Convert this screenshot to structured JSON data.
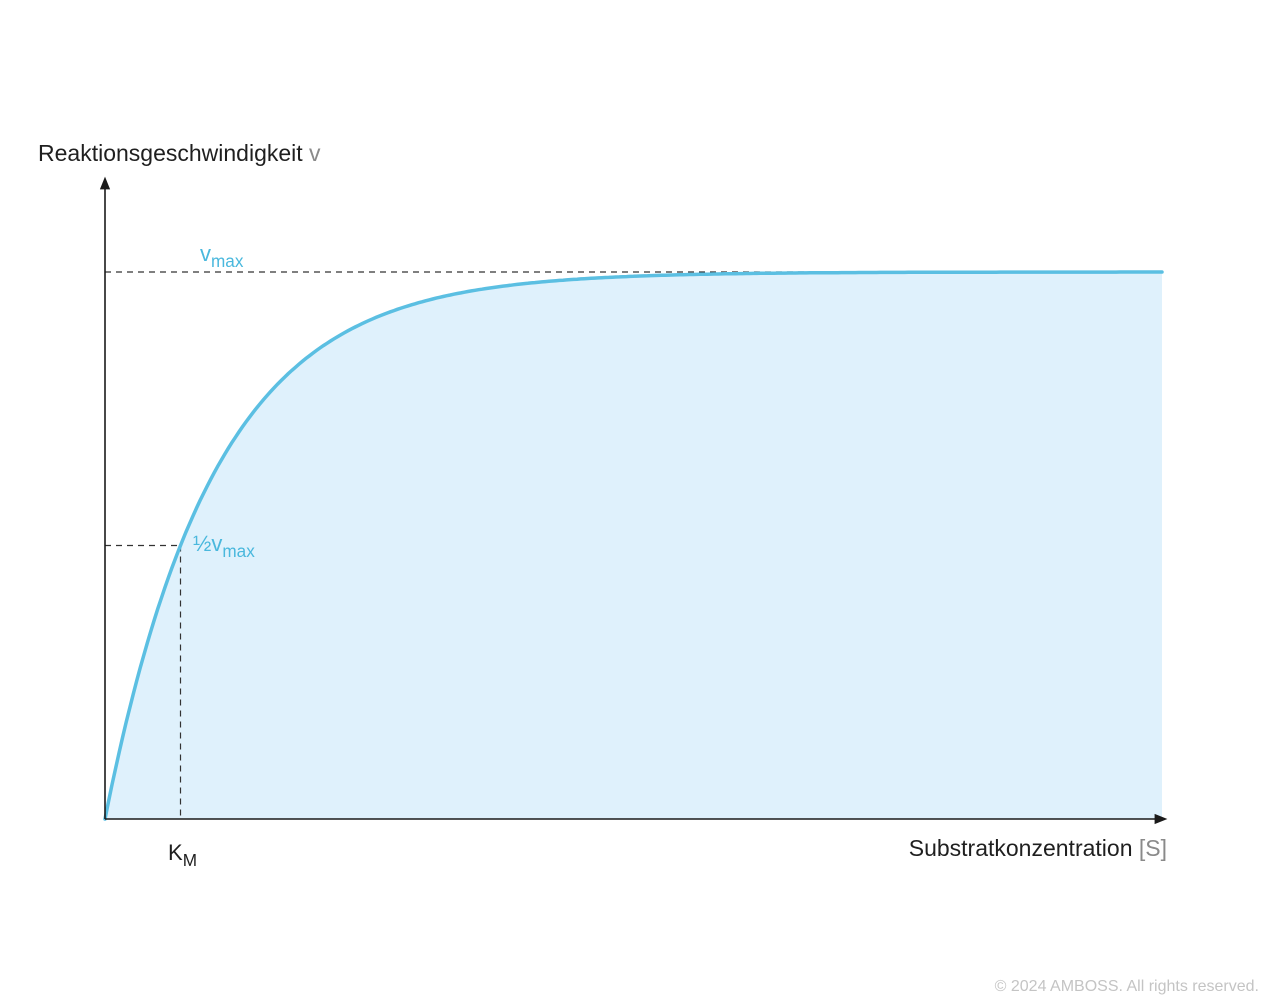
{
  "y_axis": {
    "label": "Reaktionsgeschwindigkeit",
    "symbol": "v"
  },
  "x_axis": {
    "label": "Substratkonzentration",
    "symbol": "[S]"
  },
  "vmax_label": {
    "main": "v",
    "sub": "max"
  },
  "half_vmax_label": {
    "main": "½v",
    "sub": "max"
  },
  "km_label": {
    "main": "K",
    "sub": "M"
  },
  "copyright": "© 2024 AMBOSS. All rights reserved.",
  "colors": {
    "curve": "#5bbfe2",
    "fill": "#dff1fc",
    "axis": "#1a1a1a",
    "guide": "#333333",
    "label_accent": "#4ab8dd"
  },
  "chart_data": {
    "type": "line",
    "model": "Michaelis-Menten",
    "series": [
      {
        "vmax": 1.0,
        "km": 1.0
      }
    ],
    "xlim": [
      0,
      14
    ],
    "ylim": [
      0,
      1.0
    ],
    "grid": false
  }
}
